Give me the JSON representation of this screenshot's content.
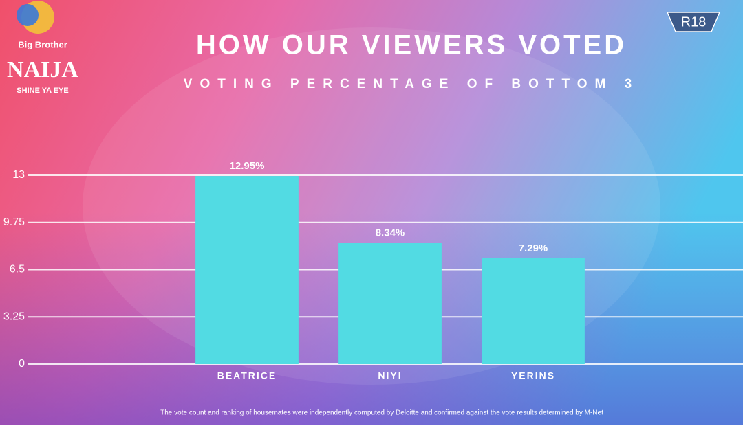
{
  "chart_data": {
    "type": "bar",
    "title": "HOW OUR VIEWERS VOTED",
    "subtitle": "VOTING PERCENTAGE OF BOTTOM 3",
    "categories": [
      "BEATRICE",
      "NIYI",
      "YERINS"
    ],
    "values": [
      12.95,
      8.34,
      7.29
    ],
    "value_labels": [
      "12.95%",
      "8.34%",
      "7.29%"
    ],
    "color": "#52dbe3",
    "ylim": [
      0,
      13
    ],
    "yticks": [
      0,
      3.25,
      6.5,
      9.75,
      13
    ],
    "grid": true,
    "footnote": "The vote count and ranking of housemates were independently computed by Deloitte and confirmed against the vote results determined by M-Net"
  },
  "overlay": {
    "logo_top": "Big Brother",
    "logo_main": "NAIJA",
    "logo_tagline": "SHINE YA EYE",
    "rating": "R18"
  }
}
